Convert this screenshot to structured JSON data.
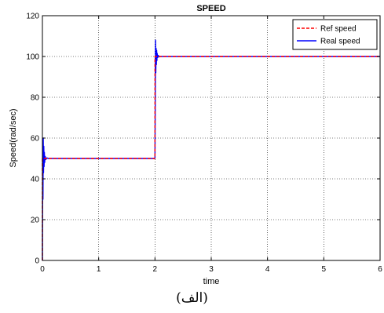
{
  "chart_data": {
    "type": "line",
    "title": "SPEED",
    "xlabel": "time",
    "ylabel": "Speed(rad/sec)",
    "xlim": [
      0,
      6
    ],
    "ylim": [
      0,
      120
    ],
    "xticks": [
      0,
      1,
      2,
      3,
      4,
      5,
      6
    ],
    "yticks": [
      0,
      20,
      40,
      60,
      80,
      100,
      120
    ],
    "grid": true,
    "legend_position": "top-right",
    "series": [
      {
        "name": "Ref speed",
        "color": "#ff0000",
        "style": "dashed",
        "x": [
          0,
          0.0,
          2.0,
          2.0,
          6.0
        ],
        "y": [
          0,
          50,
          50,
          100,
          100
        ]
      },
      {
        "name": "Real speed",
        "color": "#0000ff",
        "style": "solid",
        "x": [
          0,
          0.005,
          0.01,
          0.015,
          0.02,
          0.025,
          0.03,
          0.035,
          0.04,
          0.05,
          0.06,
          0.08,
          0.1,
          0.2,
          2.0,
          2.005,
          2.01,
          2.015,
          2.02,
          2.025,
          2.03,
          2.035,
          2.04,
          2.05,
          2.06,
          2.08,
          2.1,
          2.3,
          6.0
        ],
        "y": [
          0,
          40,
          30,
          60,
          43,
          56,
          46,
          53,
          48,
          51,
          49.5,
          50.3,
          50,
          50,
          50,
          76,
          108,
          92,
          104,
          96,
          103,
          98,
          101.5,
          99.5,
          100.5,
          99.8,
          100,
          100,
          100
        ]
      }
    ]
  },
  "caption": "(الف)"
}
